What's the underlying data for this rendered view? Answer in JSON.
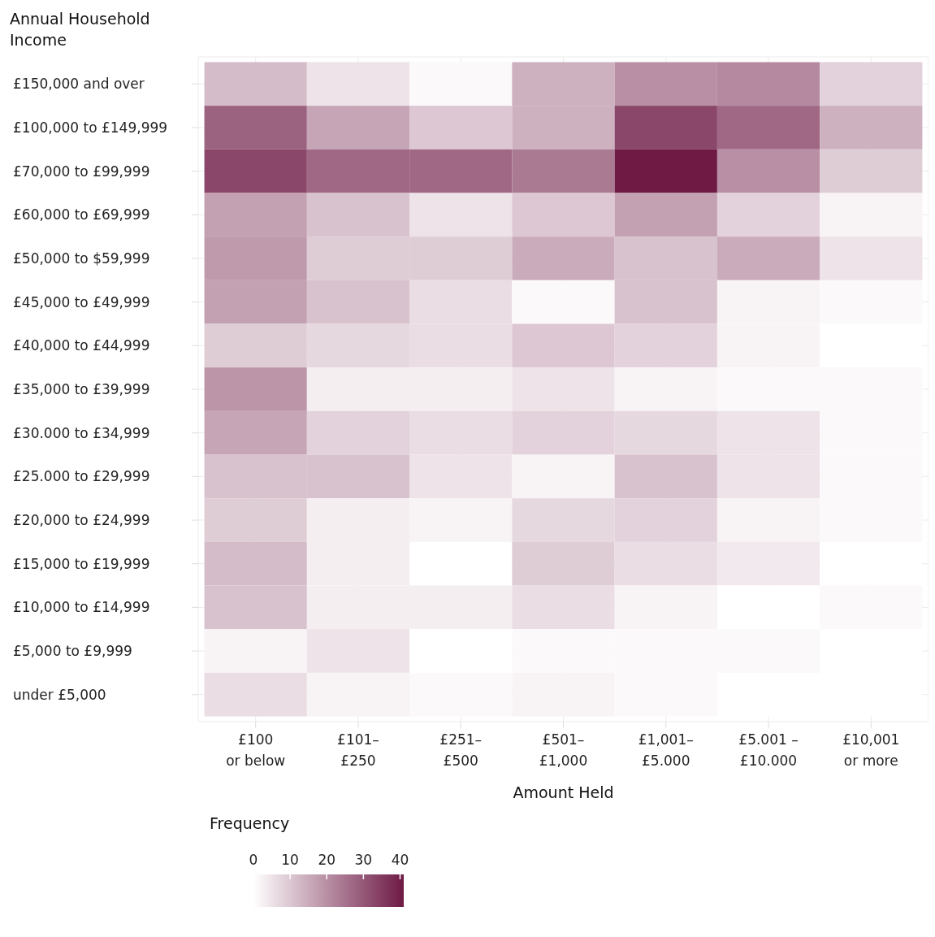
{
  "chart_data": {
    "type": "heatmap",
    "xlabel": "Amount Held",
    "ylabel": "Annual Household Income",
    "legend_title": "Frequency",
    "categories": [
      "£100\nor below",
      "£101–\n£250",
      "£251–\n£500",
      "£501–\n£1,000",
      "£1,001–\n£5.000",
      "£5.001 –\n£10.000",
      "£10,001\nor more"
    ],
    "y_categories": [
      "£150,000 and over",
      "£100,000 to £149,999",
      "£70,000 to £99,999",
      "£60,000 to £69,999",
      "£50,000 to $59,999",
      "£45,000 to £49,999",
      "£40,000 to £44,999",
      "£35,000 to £39,999",
      "£30.000 to £34,999",
      "£25.000 to £29,999",
      "£20,000 to £24,999",
      "£15,000 to £19,999",
      "£10,000 to £14,999",
      "£5,000 to £9,999",
      "under £5,000"
    ],
    "cells": [
      [
        12,
        5,
        1,
        14,
        20,
        21,
        8
      ],
      [
        28,
        16,
        10,
        14,
        33,
        27,
        14
      ],
      [
        33,
        27,
        27,
        24,
        41,
        20,
        9
      ],
      [
        17,
        11,
        5,
        10,
        17,
        8,
        2
      ],
      [
        18,
        9,
        9,
        15,
        11,
        15,
        5
      ],
      [
        17,
        11,
        6,
        1,
        11,
        2,
        1
      ],
      [
        9,
        7,
        6,
        10,
        8,
        2,
        0
      ],
      [
        19,
        3,
        3,
        5,
        2,
        1,
        1
      ],
      [
        16,
        8,
        6,
        8,
        7,
        5,
        1
      ],
      [
        11,
        11,
        5,
        2,
        11,
        5,
        1
      ],
      [
        9,
        3,
        2,
        7,
        8,
        2,
        1
      ],
      [
        12,
        3,
        0,
        9,
        6,
        4,
        0
      ],
      [
        11,
        3,
        3,
        6,
        2,
        0,
        1
      ],
      [
        2,
        5,
        0,
        1,
        1,
        1,
        0
      ],
      [
        6,
        2,
        1,
        2,
        1,
        0,
        0
      ]
    ],
    "color": "#6e1a45",
    "clim": [
      0,
      41
    ],
    "cticks": [
      0,
      10,
      20,
      30,
      40
    ],
    "grid": true
  }
}
